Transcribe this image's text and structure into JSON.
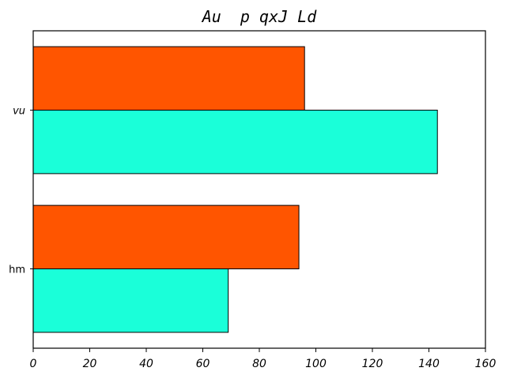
{
  "chart_data": {
    "type": "bar",
    "orientation": "horizontal",
    "title": "Au  p qxJ Ld",
    "categories": [
      "vu",
      "hm"
    ],
    "category_italic": [
      true,
      false
    ],
    "series": [
      {
        "values": [
          96,
          94
        ],
        "color": "#ff5500"
      },
      {
        "values": [
          143,
          69
        ],
        "color": "#1affd9"
      }
    ],
    "xlim": [
      0,
      160
    ],
    "xticks": [
      0,
      20,
      40,
      60,
      80,
      100,
      120,
      140,
      160
    ],
    "grid": false,
    "legend": "none"
  }
}
